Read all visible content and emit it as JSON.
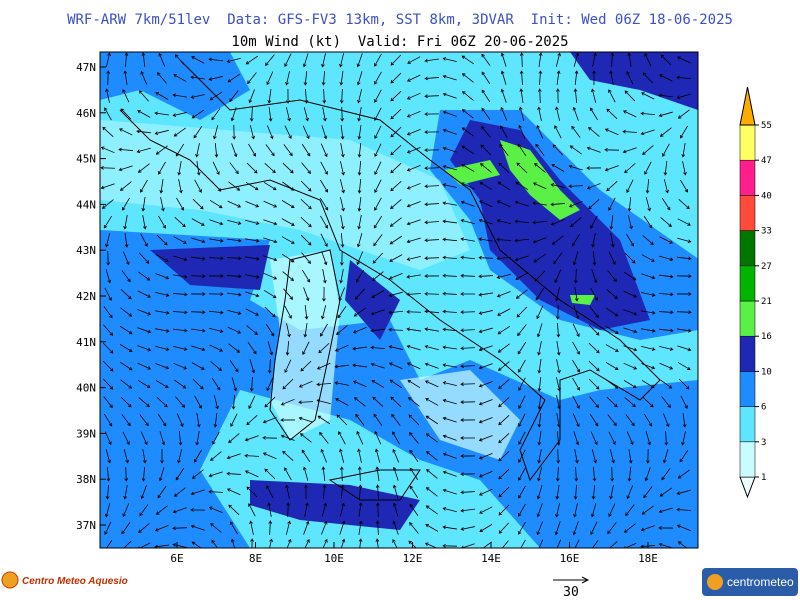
{
  "header": {
    "title": "WRF-ARW 7km/51lev  Data: GFS-FV3 13km, SST 8km, 3DVAR  Init: Wed 06Z 18-06-2025",
    "subtitle": "10m Wind (kt)  Valid: Fri 06Z 20-06-2025"
  },
  "map": {
    "lat_labels": [
      "47N",
      "46N",
      "45N",
      "44N",
      "43N",
      "42N",
      "41N",
      "40N",
      "39N",
      "38N",
      "37N"
    ],
    "lon_labels": [
      "6E",
      "8E",
      "10E",
      "12E",
      "14E",
      "16E",
      "18E"
    ]
  },
  "colorbar": {
    "levels": [
      1,
      3,
      6,
      10,
      16,
      21,
      27,
      33,
      40,
      47,
      55
    ],
    "colors": [
      "#f0ffff",
      "#c8fcff",
      "#5fe6ff",
      "#1e8cff",
      "#1e28b4",
      "#5af046",
      "#00b400",
      "#007800",
      "#ff4a3c",
      "#ff1e8c",
      "#ffff64",
      "#ffaa00"
    ]
  },
  "reference_arrow": {
    "label": "30"
  },
  "logos": {
    "left": "Centro Meteo Aquesio",
    "right": "centrometeo"
  }
}
